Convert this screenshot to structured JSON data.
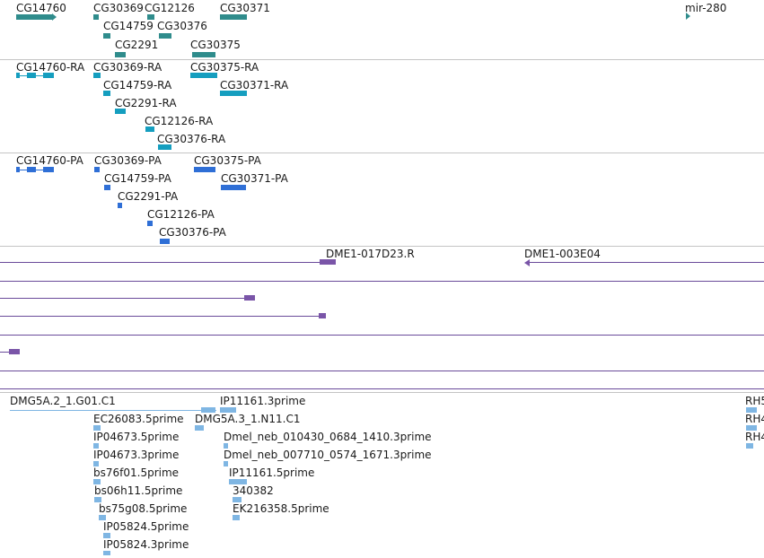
{
  "colors": {
    "gene": "#2f8c8c",
    "transcript": "#159ebf",
    "protein": "#2f6fd6",
    "clone": "#7a55a8",
    "est": "#7fb6e3",
    "separator": "#c4c4c4"
  },
  "gene_track": {
    "labels": [
      "CG14760",
      "CG30369",
      "CG12126",
      "CG30371",
      "mir-280",
      "CG14759",
      "CG30376",
      "CG2291",
      "CG30375"
    ]
  },
  "transcript_track": {
    "labels": [
      "CG14760-RA",
      "CG30369-RA",
      "CG30375-RA",
      "CG14759-RA",
      "CG30371-RA",
      "CG2291-RA",
      "CG12126-RA",
      "CG30376-RA"
    ]
  },
  "protein_track": {
    "labels": [
      "CG14760-PA",
      "CG30369-PA",
      "CG30375-PA",
      "CG14759-PA",
      "CG30371-PA",
      "CG2291-PA",
      "CG12126-PA",
      "CG30376-PA"
    ]
  },
  "clone_track": {
    "labels": [
      "DME1-017D23.R",
      "DME1-003E04"
    ]
  },
  "est_track": {
    "labels": [
      "DMG5A.2_1.G01.C1",
      "IP11161.3prime",
      "RH5",
      "EC26083.5prime",
      "DMG5A.3_1.N11.C1",
      "RH4",
      "IP04673.5prime",
      "Dmel_neb_010430_0684_1410.3prime",
      "RH4",
      "IP04673.3prime",
      "Dmel_neb_007710_0574_1671.3prime",
      "bs76f01.5prime",
      "IP11161.5prime",
      "bs06h11.5prime",
      "340382",
      "bs75g08.5prime",
      "EK216358.5prime",
      "IP05824.5prime",
      "IP05824.3prime"
    ]
  }
}
